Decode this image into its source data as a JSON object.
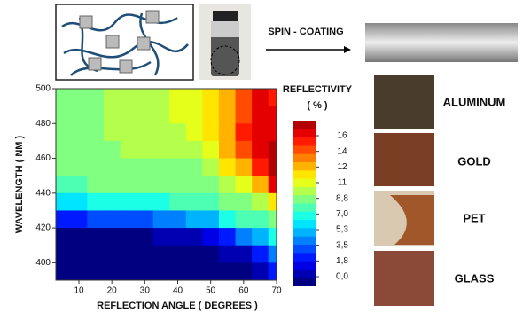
{
  "chart_data": {
    "type": "contour",
    "process_label": "SPIN - COATING",
    "colorbar_title": "REFLECTIVITY",
    "colorbar_unit": "( % )",
    "xlabel": "REFLECTION ANGLE ( DEGREES )",
    "ylabel": "WAVELENGTH ( NM )",
    "xlim": [
      3,
      70
    ],
    "ylim": [
      390,
      500
    ],
    "xticks": [
      10,
      20,
      30,
      40,
      50,
      60,
      70
    ],
    "yticks": [
      400,
      420,
      440,
      460,
      480,
      500
    ],
    "colormap": "jet",
    "zlim": [
      0,
      17.5
    ],
    "zticks": [
      {
        "value": 16,
        "label": "16"
      },
      {
        "value": 14,
        "label": "14"
      },
      {
        "value": 12,
        "label": "12"
      },
      {
        "value": 11,
        "label": "11"
      },
      {
        "value": 8.8,
        "label": "8,8"
      },
      {
        "value": 7.0,
        "label": "7,0"
      },
      {
        "value": 5.3,
        "label": "5,3"
      },
      {
        "value": 3.5,
        "label": "3,5"
      },
      {
        "value": 1.8,
        "label": "1,8"
      },
      {
        "value": 0,
        "label": "0,0"
      }
    ],
    "x": [
      5,
      10,
      15,
      20,
      25,
      30,
      35,
      40,
      45,
      50,
      55,
      60,
      65,
      70
    ],
    "y": [
      495,
      485,
      475,
      465,
      455,
      445,
      435,
      425,
      415,
      405,
      395
    ],
    "z": [
      [
        9,
        9.5,
        9.5,
        9.8,
        10,
        10,
        10,
        10.5,
        11,
        12,
        13,
        14,
        16,
        15
      ],
      [
        9,
        9.5,
        9.5,
        9.8,
        10,
        10,
        10,
        10.5,
        11,
        12,
        13,
        14.5,
        16,
        16
      ],
      [
        9,
        9.5,
        9.5,
        9.8,
        10,
        10,
        10,
        10,
        10.5,
        11.5,
        13,
        15,
        16,
        16.5
      ],
      [
        9,
        9.3,
        9.5,
        9.5,
        9.8,
        10,
        10,
        10,
        10,
        11,
        12.5,
        14,
        16,
        17
      ],
      [
        9,
        9,
        9.3,
        9.5,
        9.5,
        9.5,
        9.5,
        9.5,
        9.5,
        10,
        11.5,
        13,
        15,
        17
      ],
      [
        8.5,
        8.5,
        8.8,
        9,
        9,
        9,
        9,
        9,
        9,
        9,
        10,
        11,
        13,
        16
      ],
      [
        6.5,
        6.5,
        7,
        7,
        7.5,
        7.5,
        7.8,
        8,
        8,
        8.5,
        9,
        9.5,
        10,
        12
      ],
      [
        3,
        3,
        3.5,
        3.5,
        4,
        4,
        4.5,
        5,
        5.5,
        6,
        7,
        8,
        8.5,
        9
      ],
      [
        0.5,
        0.5,
        0.5,
        0.5,
        0.5,
        0.8,
        1,
        1.2,
        1.5,
        2,
        3,
        5,
        6,
        7
      ],
      [
        0.3,
        0.3,
        0.3,
        0.3,
        0.3,
        0.3,
        0.3,
        0.3,
        0.5,
        0.8,
        1,
        1.5,
        3,
        5
      ],
      [
        0.3,
        0.3,
        0.3,
        0.3,
        0.3,
        0.3,
        0.3,
        0.3,
        0.3,
        0.3,
        0.5,
        0.8,
        1.5,
        3
      ]
    ],
    "substrates": [
      "ALUMINUM",
      "GOLD",
      "PET",
      "GLASS"
    ]
  }
}
